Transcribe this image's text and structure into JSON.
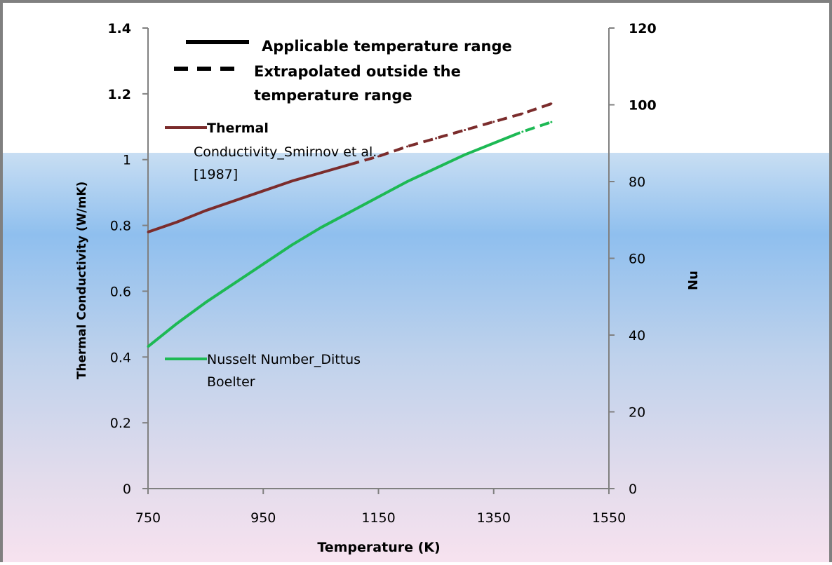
{
  "chart_data": {
    "type": "line",
    "xlabel": "Temperature (K)",
    "ylabel_left": "Thermal Conductivity (W/mK)",
    "ylabel_right": "Nu",
    "xlim": [
      750,
      1550
    ],
    "ylim_left": [
      0,
      1.4
    ],
    "ylim_right": [
      0,
      120
    ],
    "x_ticks": [
      "750",
      "950",
      "1150",
      "1350",
      "1550"
    ],
    "y_left_ticks": [
      "0",
      "0.2",
      "0.4",
      "0.6",
      "0.8",
      "1",
      "1.2",
      "1.4"
    ],
    "y_right_ticks": [
      "0",
      "20",
      "40",
      "60",
      "80",
      "100",
      "120"
    ],
    "grid": false,
    "legend_position": "top-left",
    "style_legend": [
      {
        "label": "Applicable temperature range",
        "style": "solid"
      },
      {
        "label": "Extrapolated outside the temperature range",
        "style": "dashed"
      }
    ],
    "series": [
      {
        "name": "Thermal Conductivity_Smirnov et al. [1987]",
        "axis": "left",
        "color": "#7b2c2c",
        "x": [
          750,
          800,
          850,
          900,
          950,
          1000,
          1050,
          1100,
          1150,
          1200,
          1250,
          1300,
          1350,
          1400,
          1450
        ],
        "y": [
          0.78,
          0.81,
          0.845,
          0.875,
          0.905,
          0.935,
          0.96,
          0.985,
          1.01,
          1.04,
          1.065,
          1.09,
          1.115,
          1.14,
          1.17
        ],
        "applicable_range": [
          750,
          1100
        ]
      },
      {
        "name": "Nusselt Number_Dittus Boelter",
        "axis": "right",
        "color": "#1db954",
        "x": [
          750,
          800,
          850,
          900,
          950,
          1000,
          1050,
          1100,
          1150,
          1200,
          1250,
          1300,
          1350,
          1400,
          1450
        ],
        "y": [
          37,
          43,
          48.5,
          53.5,
          58.5,
          63.5,
          68,
          72,
          76,
          80,
          83.5,
          87,
          90,
          93,
          95.5
        ],
        "applicable_range": [
          750,
          1380
        ]
      }
    ]
  }
}
